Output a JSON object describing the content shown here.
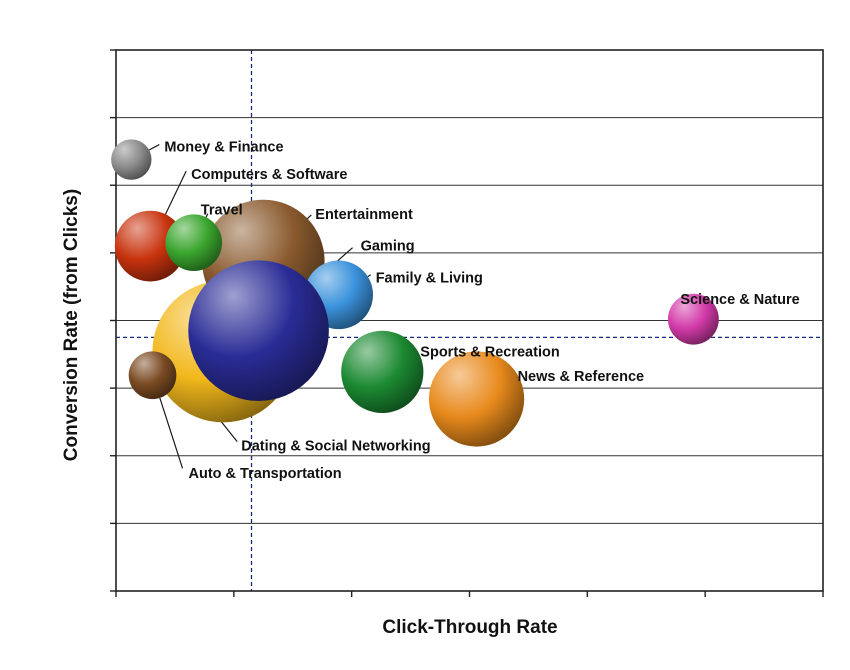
{
  "chart_data": {
    "type": "bubble",
    "xlabel": "Click-Through Rate",
    "ylabel": "Conversion Rate (from Clicks)",
    "xlim": [
      0,
      6
    ],
    "ylim": [
      0,
      8
    ],
    "grid": "horizontal",
    "tick_labels_shown": false,
    "reference_lines": {
      "x_average": 1.15,
      "y_average": 3.75
    },
    "series": [
      {
        "name": "Money & Finance",
        "x": 0.13,
        "y": 6.38,
        "size": 4,
        "color": "#8c8c8c"
      },
      {
        "name": "Computers & Software",
        "x": 0.29,
        "y": 5.1,
        "size": 15,
        "color": "#c8330e"
      },
      {
        "name": "Travel",
        "x": 0.66,
        "y": 5.15,
        "size": 9,
        "color": "#3aa52e"
      },
      {
        "name": "Entertainment",
        "x": 1.25,
        "y": 4.88,
        "size": 50,
        "color": "#8a5a2e"
      },
      {
        "name": "Family & Living",
        "x": 1.89,
        "y": 4.38,
        "size": 14,
        "color": "#3a92dc"
      },
      {
        "name": "Science & Nature",
        "x": 4.9,
        "y": 4.02,
        "size": 7,
        "color": "#d23aa8"
      },
      {
        "name": "Sports & Recreation",
        "x": 2.26,
        "y": 3.24,
        "size": 21,
        "color": "#1c8a32"
      },
      {
        "name": "News & Reference",
        "x": 3.06,
        "y": 2.84,
        "size": 29,
        "color": "#e88a1c"
      },
      {
        "name": "Dating & Social Networking",
        "x": 0.91,
        "y": 3.54,
        "size": 68,
        "color": "#f2b81c"
      },
      {
        "name": "Auto & Transportation",
        "x": 0.31,
        "y": 3.19,
        "size": 6,
        "color": "#7a4a22"
      },
      {
        "name": "Gaming",
        "x": 1.21,
        "y": 3.85,
        "size": 67,
        "color": "#2a2c96"
      }
    ]
  }
}
